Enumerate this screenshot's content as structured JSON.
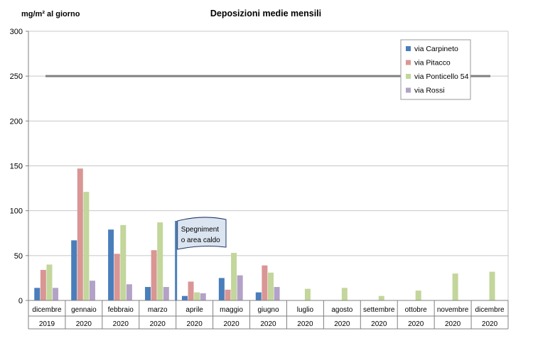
{
  "chart_data": {
    "type": "bar",
    "title": "Deposizioni medie mensili",
    "ylabel": "mg/m² al giorno",
    "ylim": [
      0,
      300
    ],
    "y_ticks": [
      "0",
      "50",
      "100",
      "150",
      "200",
      "250",
      "300"
    ],
    "grid": true,
    "legend_position": "top-right",
    "categories": [
      "dicembre",
      "gennaio",
      "febbraio",
      "marzo",
      "aprile",
      "maggio",
      "giugno",
      "luglio",
      "agosto",
      "settembre",
      "ottobre",
      "novembre",
      "dicembre"
    ],
    "years": [
      "2019",
      "2020",
      "2020",
      "2020",
      "2020",
      "2020",
      "2020",
      "2020",
      "2020",
      "2020",
      "2020",
      "2020",
      "2020"
    ],
    "series": [
      {
        "name": "via Carpineto",
        "color": "#4a7ebb",
        "values": [
          14,
          67,
          79,
          15,
          5,
          25,
          9,
          null,
          null,
          null,
          null,
          null,
          null
        ]
      },
      {
        "name": "via Pitacco",
        "color": "#d99694",
        "values": [
          34,
          147,
          52,
          56,
          21,
          12,
          39,
          null,
          null,
          null,
          null,
          null,
          null
        ]
      },
      {
        "name": "via Ponticello 54",
        "color": "#c3d69b",
        "values": [
          40,
          121,
          84,
          87,
          9,
          53,
          31,
          13,
          14,
          5,
          11,
          30,
          32
        ]
      },
      {
        "name": "via Rossi",
        "color": "#b3a2c7",
        "values": [
          14,
          22,
          18,
          15,
          8,
          28,
          15,
          null,
          null,
          null,
          null,
          null,
          null
        ]
      }
    ],
    "reference_line": {
      "value": 250,
      "color": "#808080"
    },
    "annotation": {
      "text_lines": [
        "Spegniment",
        "o area caldo"
      ],
      "category_index": 4
    }
  }
}
